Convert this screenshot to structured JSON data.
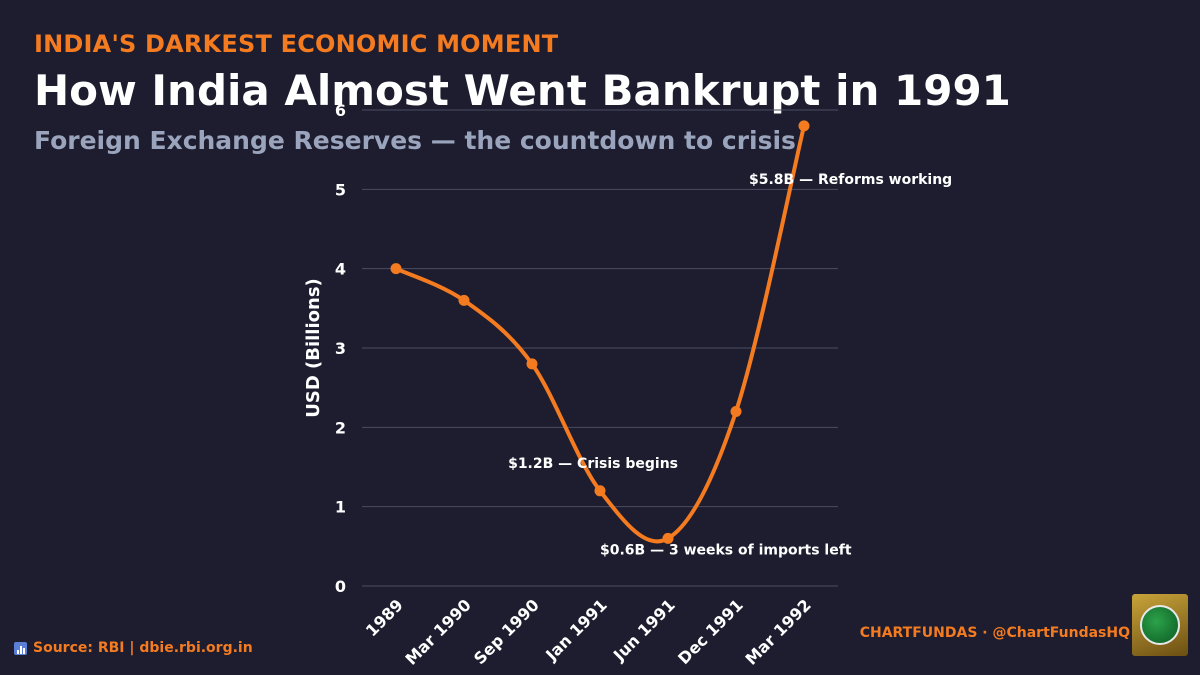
{
  "header": {
    "kicker": "INDIA'S DARKEST ECONOMIC MOMENT",
    "title": "How India Almost Went Bankrupt in 1991",
    "subtitle": "Foreign Exchange Reserves — the countdown to crisis"
  },
  "footer": {
    "source": "Source: RBI | dbie.rbi.org.in",
    "source_icon": "bar-chart-icon",
    "brand": "CHARTFUNDAS · @ChartFundasHQ",
    "logo_icon": "globe-logo-icon"
  },
  "colors": {
    "background": "#1d1d2f",
    "accent": "#f47b20",
    "subtitle": "#9aa5bd",
    "text": "#ffffff",
    "grid": "#4a4d62"
  },
  "chart_data": {
    "type": "line",
    "categories": [
      "1989",
      "Mar 1990",
      "Sep 1990",
      "Jan 1991",
      "Jun 1991",
      "Dec 1991",
      "Mar 1992"
    ],
    "series": [
      {
        "values": [
          4.0,
          3.6,
          2.8,
          1.2,
          0.6,
          2.2,
          5.8
        ]
      }
    ],
    "ylabel": "USD (Billions)",
    "ylim": [
      0,
      6
    ],
    "yticks": [
      0,
      1,
      2,
      3,
      4,
      5,
      6
    ],
    "grid": true,
    "annotations": [
      {
        "index": 3,
        "text": "$1.2B — Crisis begins"
      },
      {
        "index": 4,
        "text": "$0.6B — 3 weeks of imports left"
      },
      {
        "index": 6,
        "text": "$5.8B — Reforms working"
      }
    ]
  }
}
